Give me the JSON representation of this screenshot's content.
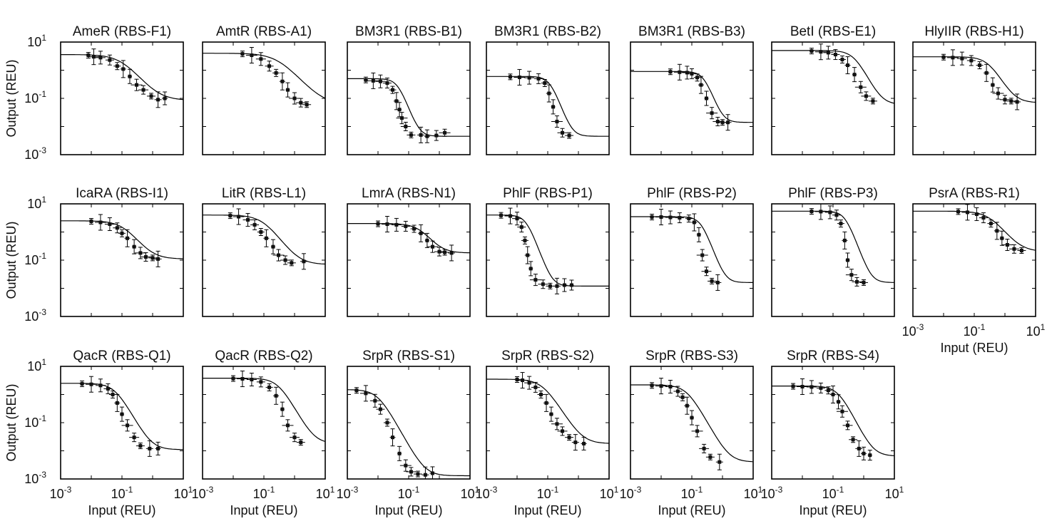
{
  "chart_data": {
    "type": "line",
    "description_axes": {
      "xlabel": "Input (REU)",
      "ylabel": "Output (REU)",
      "xscale": "log",
      "yscale": "log",
      "xlim": [
        0.001,
        10
      ],
      "ylim": [
        0.001,
        10
      ],
      "x_ticks": [
        {
          "base": "10",
          "exp": "-3",
          "value": 0.001
        },
        {
          "base": "10",
          "exp": "-1",
          "value": 0.1
        },
        {
          "base": "10",
          "exp": "1",
          "value": 10
        }
      ],
      "y_ticks": [
        {
          "base": "10",
          "exp": "1",
          "value": 10
        },
        {
          "base": "10",
          "exp": "-1",
          "value": 0.1
        },
        {
          "base": "10",
          "exp": "-3",
          "value": 0.001
        }
      ]
    },
    "panels": [
      {
        "title": "AmeR (RBS-F1)",
        "ymax": 3.6,
        "ymin": 0.085,
        "K": 0.1,
        "n": 1.4,
        "x": [
          0.008,
          0.012,
          0.02,
          0.04,
          0.07,
          0.11,
          0.18,
          0.3,
          0.5,
          0.9,
          1.5,
          2.5
        ],
        "y": [
          3.4,
          3.0,
          2.8,
          2.3,
          1.4,
          1.1,
          0.6,
          0.3,
          0.2,
          0.12,
          0.09,
          0.1
        ]
      },
      {
        "title": "AmtR (RBS-A1)",
        "ymax": 4.0,
        "ymin": 0.06,
        "K": 0.3,
        "n": 1.3,
        "x": [
          0.02,
          0.04,
          0.08,
          0.15,
          0.25,
          0.4,
          0.6,
          1.0,
          1.6,
          2.5
        ],
        "y": [
          3.8,
          3.4,
          2.5,
          1.4,
          0.8,
          0.4,
          0.2,
          0.1,
          0.07,
          0.06
        ]
      },
      {
        "title": "BM3R1 (RBS-B1)",
        "ymax": 0.5,
        "ymin": 0.0045,
        "K": 0.045,
        "n": 3.0,
        "x": [
          0.004,
          0.007,
          0.012,
          0.02,
          0.03,
          0.04,
          0.05,
          0.06,
          0.08,
          0.12,
          0.25,
          0.4,
          0.8,
          1.5
        ],
        "y": [
          0.45,
          0.42,
          0.4,
          0.35,
          0.2,
          0.08,
          0.04,
          0.02,
          0.01,
          0.005,
          0.005,
          0.0045,
          0.0048,
          0.006
        ]
      },
      {
        "title": "BM3R1 (RBS-B2)",
        "ymax": 0.6,
        "ymin": 0.0045,
        "K": 0.12,
        "n": 3.0,
        "x": [
          0.006,
          0.012,
          0.025,
          0.05,
          0.08,
          0.11,
          0.15,
          0.2,
          0.3,
          0.5
        ],
        "y": [
          0.58,
          0.56,
          0.54,
          0.5,
          0.35,
          0.15,
          0.05,
          0.015,
          0.006,
          0.0048
        ]
      },
      {
        "title": "BM3R1 (RBS-B3)",
        "ymax": 0.9,
        "ymin": 0.014,
        "K": 0.25,
        "n": 3.0,
        "x": [
          0.02,
          0.04,
          0.07,
          0.1,
          0.15,
          0.2,
          0.3,
          0.45,
          0.7,
          1.0,
          1.5
        ],
        "y": [
          0.88,
          0.85,
          0.82,
          0.75,
          0.55,
          0.3,
          0.1,
          0.03,
          0.015,
          0.014,
          0.014
        ]
      },
      {
        "title": "BetI (RBS-E1)",
        "ymax": 5.0,
        "ymin": 0.06,
        "K": 0.5,
        "n": 2.2,
        "x": [
          0.02,
          0.04,
          0.07,
          0.12,
          0.2,
          0.3,
          0.5,
          0.8,
          1.2,
          2.0
        ],
        "y": [
          4.8,
          4.5,
          4.2,
          3.6,
          2.4,
          1.5,
          0.7,
          0.25,
          0.12,
          0.08
        ]
      },
      {
        "title": "HlyIIR (RBS-H1)",
        "ymax": 3.0,
        "ymin": 0.07,
        "K": 0.3,
        "n": 2.0,
        "x": [
          0.01,
          0.02,
          0.04,
          0.08,
          0.15,
          0.25,
          0.4,
          0.6,
          1.0,
          1.6,
          2.5
        ],
        "y": [
          2.9,
          2.8,
          2.6,
          2.2,
          1.5,
          0.8,
          0.3,
          0.15,
          0.09,
          0.08,
          0.075
        ]
      },
      {
        "title": "IcaRA (RBS-I1)",
        "ymax": 2.5,
        "ymin": 0.11,
        "K": 0.12,
        "n": 1.6,
        "x": [
          0.01,
          0.02,
          0.04,
          0.07,
          0.1,
          0.15,
          0.25,
          0.4,
          0.6,
          1.0,
          1.5
        ],
        "y": [
          2.4,
          2.2,
          1.9,
          1.4,
          0.9,
          0.6,
          0.3,
          0.18,
          0.13,
          0.12,
          0.11
        ]
      },
      {
        "title": "LitR (RBS-L1)",
        "ymax": 4.0,
        "ymin": 0.07,
        "K": 0.1,
        "n": 1.6,
        "x": [
          0.008,
          0.015,
          0.03,
          0.05,
          0.08,
          0.12,
          0.2,
          0.3,
          0.5,
          0.8,
          2.0
        ],
        "y": [
          3.8,
          3.5,
          2.7,
          1.8,
          1.0,
          0.6,
          0.3,
          0.15,
          0.1,
          0.08,
          0.09
        ]
      },
      {
        "title": "LmrA (RBS-N1)",
        "ymax": 2.0,
        "ymin": 0.18,
        "K": 0.25,
        "n": 1.8,
        "x": [
          0.01,
          0.02,
          0.04,
          0.08,
          0.15,
          0.25,
          0.4,
          0.6,
          1.0,
          1.5,
          2.5
        ],
        "y": [
          1.95,
          1.9,
          1.8,
          1.6,
          1.3,
          0.9,
          0.5,
          0.3,
          0.2,
          0.19,
          0.18
        ]
      },
      {
        "title": "PhlF (RBS-P1)",
        "ymax": 4.0,
        "ymin": 0.012,
        "K": 0.02,
        "n": 3.0,
        "x": [
          0.003,
          0.006,
          0.01,
          0.014,
          0.018,
          0.022,
          0.028,
          0.04,
          0.07,
          0.12,
          0.2,
          0.35,
          0.6
        ],
        "y": [
          3.9,
          3.7,
          3.0,
          1.5,
          0.5,
          0.15,
          0.05,
          0.02,
          0.014,
          0.012,
          0.012,
          0.013,
          0.013
        ]
      },
      {
        "title": "PhlF (RBS-P2)",
        "ymax": 3.5,
        "ymin": 0.016,
        "K": 0.2,
        "n": 3.0,
        "x": [
          0.005,
          0.01,
          0.02,
          0.04,
          0.08,
          0.12,
          0.17,
          0.22,
          0.3,
          0.45,
          0.7
        ],
        "y": [
          3.4,
          3.4,
          3.3,
          3.2,
          3.0,
          2.2,
          0.8,
          0.15,
          0.04,
          0.018,
          0.016
        ]
      },
      {
        "title": "PhlF (RBS-P3)",
        "ymax": 5.5,
        "ymin": 0.016,
        "K": 0.25,
        "n": 3.0,
        "x": [
          0.02,
          0.04,
          0.08,
          0.13,
          0.18,
          0.24,
          0.3,
          0.4,
          0.6,
          1.0
        ],
        "y": [
          5.4,
          5.3,
          5.0,
          4.0,
          2.0,
          0.5,
          0.1,
          0.03,
          0.017,
          0.016
        ]
      },
      {
        "title": "PsrA (RBS-R1)",
        "ymax": 5.5,
        "ymin": 0.2,
        "K": 0.35,
        "n": 1.6,
        "x": [
          0.03,
          0.06,
          0.12,
          0.2,
          0.35,
          0.55,
          0.8,
          1.2,
          2.0,
          3.5
        ],
        "y": [
          5.3,
          5.0,
          4.3,
          3.2,
          2.0,
          1.1,
          0.6,
          0.35,
          0.25,
          0.22
        ]
      },
      {
        "title": "QacR (RBS-Q1)",
        "ymax": 2.5,
        "ymin": 0.011,
        "K": 0.06,
        "n": 2.0,
        "x": [
          0.005,
          0.01,
          0.02,
          0.035,
          0.05,
          0.07,
          0.1,
          0.15,
          0.25,
          0.4,
          0.8,
          1.5
        ],
        "y": [
          2.4,
          2.3,
          2.1,
          1.6,
          1.0,
          0.5,
          0.2,
          0.08,
          0.03,
          0.015,
          0.012,
          0.012
        ]
      },
      {
        "title": "QacR (RBS-Q2)",
        "ymax": 3.8,
        "ymin": 0.018,
        "K": 0.3,
        "n": 2.0,
        "x": [
          0.01,
          0.02,
          0.04,
          0.08,
          0.15,
          0.25,
          0.4,
          0.6,
          1.0,
          1.6
        ],
        "y": [
          3.7,
          3.6,
          3.4,
          2.8,
          1.8,
          0.9,
          0.3,
          0.08,
          0.03,
          0.02
        ]
      },
      {
        "title": "SrpR (RBS-S1)",
        "ymax": 1.5,
        "ymin": 0.0013,
        "K": 0.01,
        "n": 2.0,
        "x": [
          0.002,
          0.004,
          0.008,
          0.012,
          0.02,
          0.03,
          0.05,
          0.08,
          0.12,
          0.2,
          0.35,
          0.6
        ],
        "y": [
          1.4,
          1.1,
          0.6,
          0.3,
          0.1,
          0.03,
          0.008,
          0.003,
          0.0018,
          0.0015,
          0.0014,
          0.0016
        ]
      },
      {
        "title": "SrpR (RBS-S2)",
        "ymax": 3.5,
        "ymin": 0.018,
        "K": 0.07,
        "n": 1.8,
        "x": [
          0.01,
          0.015,
          0.025,
          0.04,
          0.06,
          0.09,
          0.13,
          0.2,
          0.3,
          0.5,
          0.8,
          1.5
        ],
        "y": [
          3.4,
          3.2,
          2.6,
          1.8,
          1.0,
          0.5,
          0.2,
          0.09,
          0.05,
          0.03,
          0.02,
          0.018
        ]
      },
      {
        "title": "SrpR (RBS-S3)",
        "ymax": 2.2,
        "ymin": 0.004,
        "K": 0.07,
        "n": 2.0,
        "x": [
          0.005,
          0.01,
          0.02,
          0.035,
          0.05,
          0.07,
          0.1,
          0.15,
          0.25,
          0.4,
          0.8
        ],
        "y": [
          2.1,
          2.0,
          1.9,
          1.3,
          0.8,
          0.4,
          0.15,
          0.05,
          0.012,
          0.006,
          0.004
        ]
      },
      {
        "title": "SrpR (RBS-S4)",
        "ymax": 2.0,
        "ymin": 0.0065,
        "K": 0.15,
        "n": 2.2,
        "x": [
          0.005,
          0.01,
          0.02,
          0.04,
          0.07,
          0.1,
          0.15,
          0.2,
          0.3,
          0.45,
          0.7,
          1.0,
          1.6
        ],
        "y": [
          1.95,
          1.9,
          1.85,
          1.7,
          1.4,
          1.0,
          0.55,
          0.25,
          0.08,
          0.025,
          0.012,
          0.008,
          0.007
        ]
      }
    ]
  }
}
